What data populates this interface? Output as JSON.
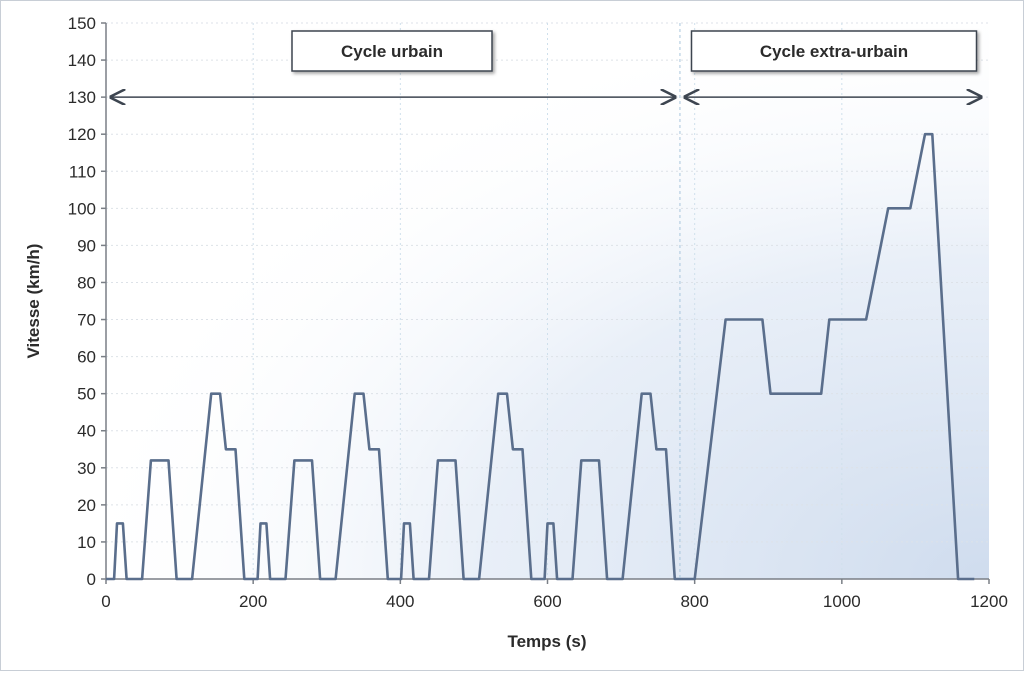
{
  "chart_data": {
    "type": "line",
    "title": "",
    "xlabel": "Temps (s)",
    "ylabel": "Vitesse (km/h)",
    "xlim": [
      0,
      1200
    ],
    "ylim": [
      0,
      150
    ],
    "x_ticks": [
      0,
      200,
      400,
      600,
      800,
      1000,
      1200
    ],
    "y_ticks": [
      0,
      10,
      20,
      30,
      40,
      50,
      60,
      70,
      80,
      90,
      100,
      110,
      120,
      130,
      140,
      150
    ],
    "grid": true,
    "series": [
      {
        "name": "Vitesse",
        "color": "#5a6e8c",
        "points": [
          [
            0,
            0
          ],
          [
            11,
            0
          ],
          [
            15,
            15
          ],
          [
            23,
            15
          ],
          [
            28,
            0
          ],
          [
            49,
            0
          ],
          [
            61,
            32
          ],
          [
            85,
            32
          ],
          [
            96,
            0
          ],
          [
            117,
            0
          ],
          [
            143,
            50
          ],
          [
            155,
            50
          ],
          [
            163,
            35
          ],
          [
            176,
            35
          ],
          [
            188,
            0
          ],
          [
            195,
            0
          ],
          [
            206,
            0
          ],
          [
            210,
            15
          ],
          [
            218,
            15
          ],
          [
            223,
            0
          ],
          [
            244,
            0
          ],
          [
            256,
            32
          ],
          [
            280,
            32
          ],
          [
            291,
            0
          ],
          [
            312,
            0
          ],
          [
            338,
            50
          ],
          [
            350,
            50
          ],
          [
            358,
            35
          ],
          [
            371,
            35
          ],
          [
            383,
            0
          ],
          [
            390,
            0
          ],
          [
            401,
            0
          ],
          [
            405,
            15
          ],
          [
            413,
            15
          ],
          [
            418,
            0
          ],
          [
            439,
            0
          ],
          [
            451,
            32
          ],
          [
            475,
            32
          ],
          [
            486,
            0
          ],
          [
            507,
            0
          ],
          [
            533,
            50
          ],
          [
            545,
            50
          ],
          [
            553,
            35
          ],
          [
            566,
            35
          ],
          [
            578,
            0
          ],
          [
            585,
            0
          ],
          [
            596,
            0
          ],
          [
            600,
            15
          ],
          [
            608,
            15
          ],
          [
            613,
            0
          ],
          [
            634,
            0
          ],
          [
            646,
            32
          ],
          [
            670,
            32
          ],
          [
            681,
            0
          ],
          [
            702,
            0
          ],
          [
            728,
            50
          ],
          [
            740,
            50
          ],
          [
            748,
            35
          ],
          [
            761,
            35
          ],
          [
            773,
            0
          ],
          [
            800,
            0
          ],
          [
            842,
            70
          ],
          [
            892,
            70
          ],
          [
            903,
            50
          ],
          [
            972,
            50
          ],
          [
            983,
            70
          ],
          [
            1033,
            70
          ],
          [
            1063,
            100
          ],
          [
            1093,
            100
          ],
          [
            1113,
            120
          ],
          [
            1123,
            120
          ],
          [
            1158,
            0
          ],
          [
            1180,
            0
          ]
        ]
      }
    ],
    "annotations": [
      {
        "text": "Cycle urbain",
        "range": [
          0,
          780
        ]
      },
      {
        "text": "Cycle extra-urbain",
        "range": [
          780,
          1200
        ]
      }
    ],
    "arrow_level": 130
  }
}
